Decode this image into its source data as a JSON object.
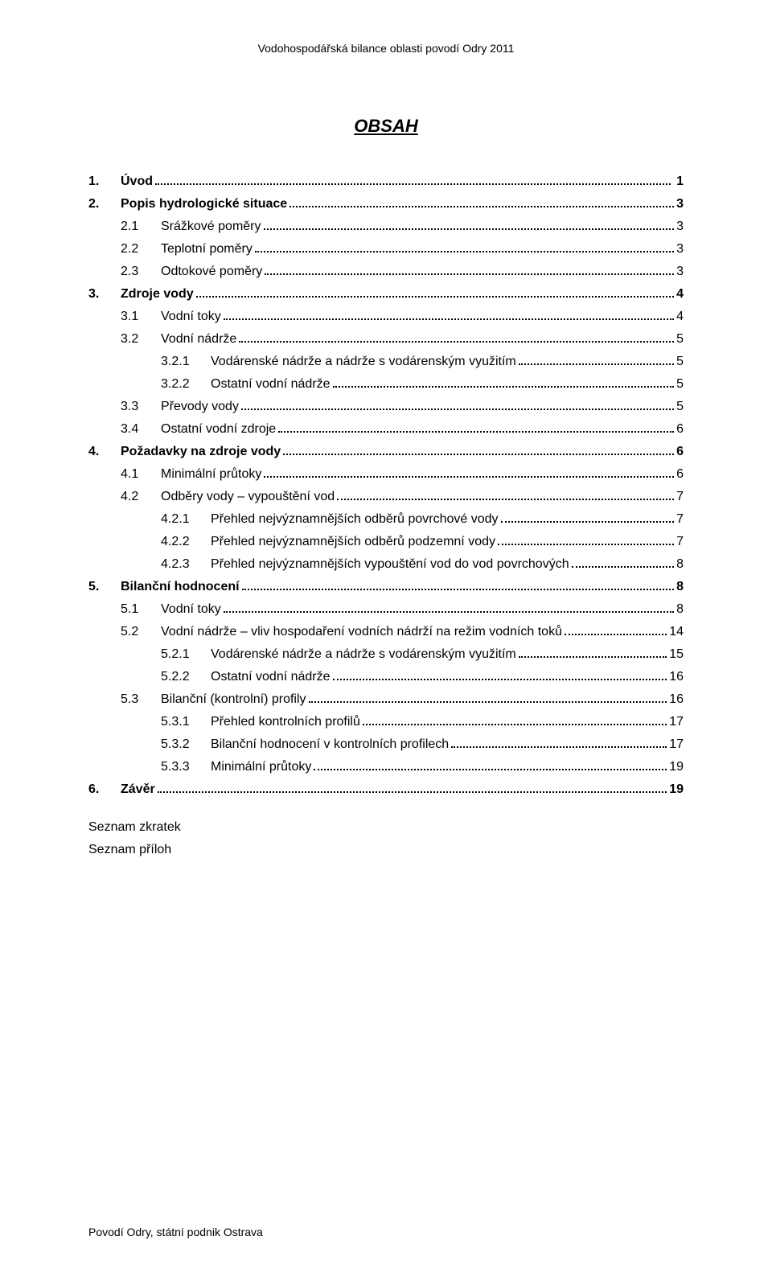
{
  "header": "Vodohospodářská bilance oblasti povodí Odry 2011",
  "title": "OBSAH",
  "toc": [
    {
      "level": 1,
      "bold": true,
      "num": "1.",
      "label": "Úvod",
      "page": " 1"
    },
    {
      "level": 1,
      "bold": true,
      "num": "2.",
      "label": "Popis hydrologické situace",
      "page": "3"
    },
    {
      "level": 2,
      "bold": false,
      "num": "2.1",
      "label": "Srážkové poměry",
      "page": "3"
    },
    {
      "level": 2,
      "bold": false,
      "num": "2.2",
      "label": "Teplotní poměry",
      "page": "3"
    },
    {
      "level": 2,
      "bold": false,
      "num": "2.3",
      "label": "Odtokové poměry",
      "page": "3"
    },
    {
      "level": 1,
      "bold": true,
      "num": "3.",
      "label": "Zdroje vody",
      "page": "4"
    },
    {
      "level": 2,
      "bold": false,
      "num": "3.1",
      "label": "Vodní toky",
      "page": "4"
    },
    {
      "level": 2,
      "bold": false,
      "num": "3.2",
      "label": "Vodní nádrže",
      "page": "5"
    },
    {
      "level": 3,
      "bold": false,
      "num": "3.2.1",
      "label": "Vodárenské nádrže a nádrže s vodárenským využitím",
      "page": "5"
    },
    {
      "level": 3,
      "bold": false,
      "num": "3.2.2",
      "label": "Ostatní vodní nádrže",
      "page": "5"
    },
    {
      "level": 2,
      "bold": false,
      "num": "3.3",
      "label": "Převody vody",
      "page": "5"
    },
    {
      "level": 2,
      "bold": false,
      "num": "3.4",
      "label": "Ostatní vodní zdroje",
      "page": "6"
    },
    {
      "level": 1,
      "bold": true,
      "num": "4.",
      "label": "Požadavky na zdroje vody",
      "page": "6"
    },
    {
      "level": 2,
      "bold": false,
      "num": "4.1",
      "label": "Minimální průtoky",
      "page": "6"
    },
    {
      "level": 2,
      "bold": false,
      "num": "4.2",
      "label": "Odběry vody – vypouštění vod",
      "page": "7"
    },
    {
      "level": 3,
      "bold": false,
      "num": "4.2.1",
      "label": "Přehled nejvýznamnějších odběrů povrchové vody",
      "page": "7"
    },
    {
      "level": 3,
      "bold": false,
      "num": "4.2.2",
      "label": "Přehled nejvýznamnějších odběrů podzemní vody",
      "page": "7"
    },
    {
      "level": 3,
      "bold": false,
      "num": "4.2.3",
      "label": "Přehled nejvýznamnějších vypouštění vod do vod povrchových",
      "page": "8"
    },
    {
      "level": 1,
      "bold": true,
      "num": "5.",
      "label": "Bilanční hodnocení",
      "page": "8"
    },
    {
      "level": 2,
      "bold": false,
      "num": "5.1",
      "label": "Vodní toky",
      "page": "8"
    },
    {
      "level": 2,
      "bold": false,
      "num": "5.2",
      "label": "Vodní nádrže – vliv hospodaření vodních nádrží na režim vodních toků",
      "page": "14"
    },
    {
      "level": 3,
      "bold": false,
      "num": "5.2.1",
      "label": "Vodárenské nádrže a nádrže s vodárenským využitím",
      "page": "15"
    },
    {
      "level": 3,
      "bold": false,
      "num": "5.2.2",
      "label": "Ostatní vodní nádrže",
      "page": "16"
    },
    {
      "level": 2,
      "bold": false,
      "num": "5.3",
      "label": "Bilanční (kontrolní) profily",
      "page": "16"
    },
    {
      "level": 3,
      "bold": false,
      "num": "5.3.1",
      "label": "Přehled kontrolních profilů",
      "page": "17"
    },
    {
      "level": 3,
      "bold": false,
      "num": "5.3.2",
      "label": "Bilanční hodnocení v kontrolních profilech",
      "page": "17"
    },
    {
      "level": 3,
      "bold": false,
      "num": "5.3.3",
      "label": "Minimální průtoky",
      "page": "19"
    },
    {
      "level": 1,
      "bold": true,
      "num": "6.",
      "label": "Závěr",
      "page": "19"
    }
  ],
  "trailing": [
    "Seznam zkratek",
    "Seznam příloh"
  ],
  "footer": "Povodí Odry, státní podnik Ostrava"
}
